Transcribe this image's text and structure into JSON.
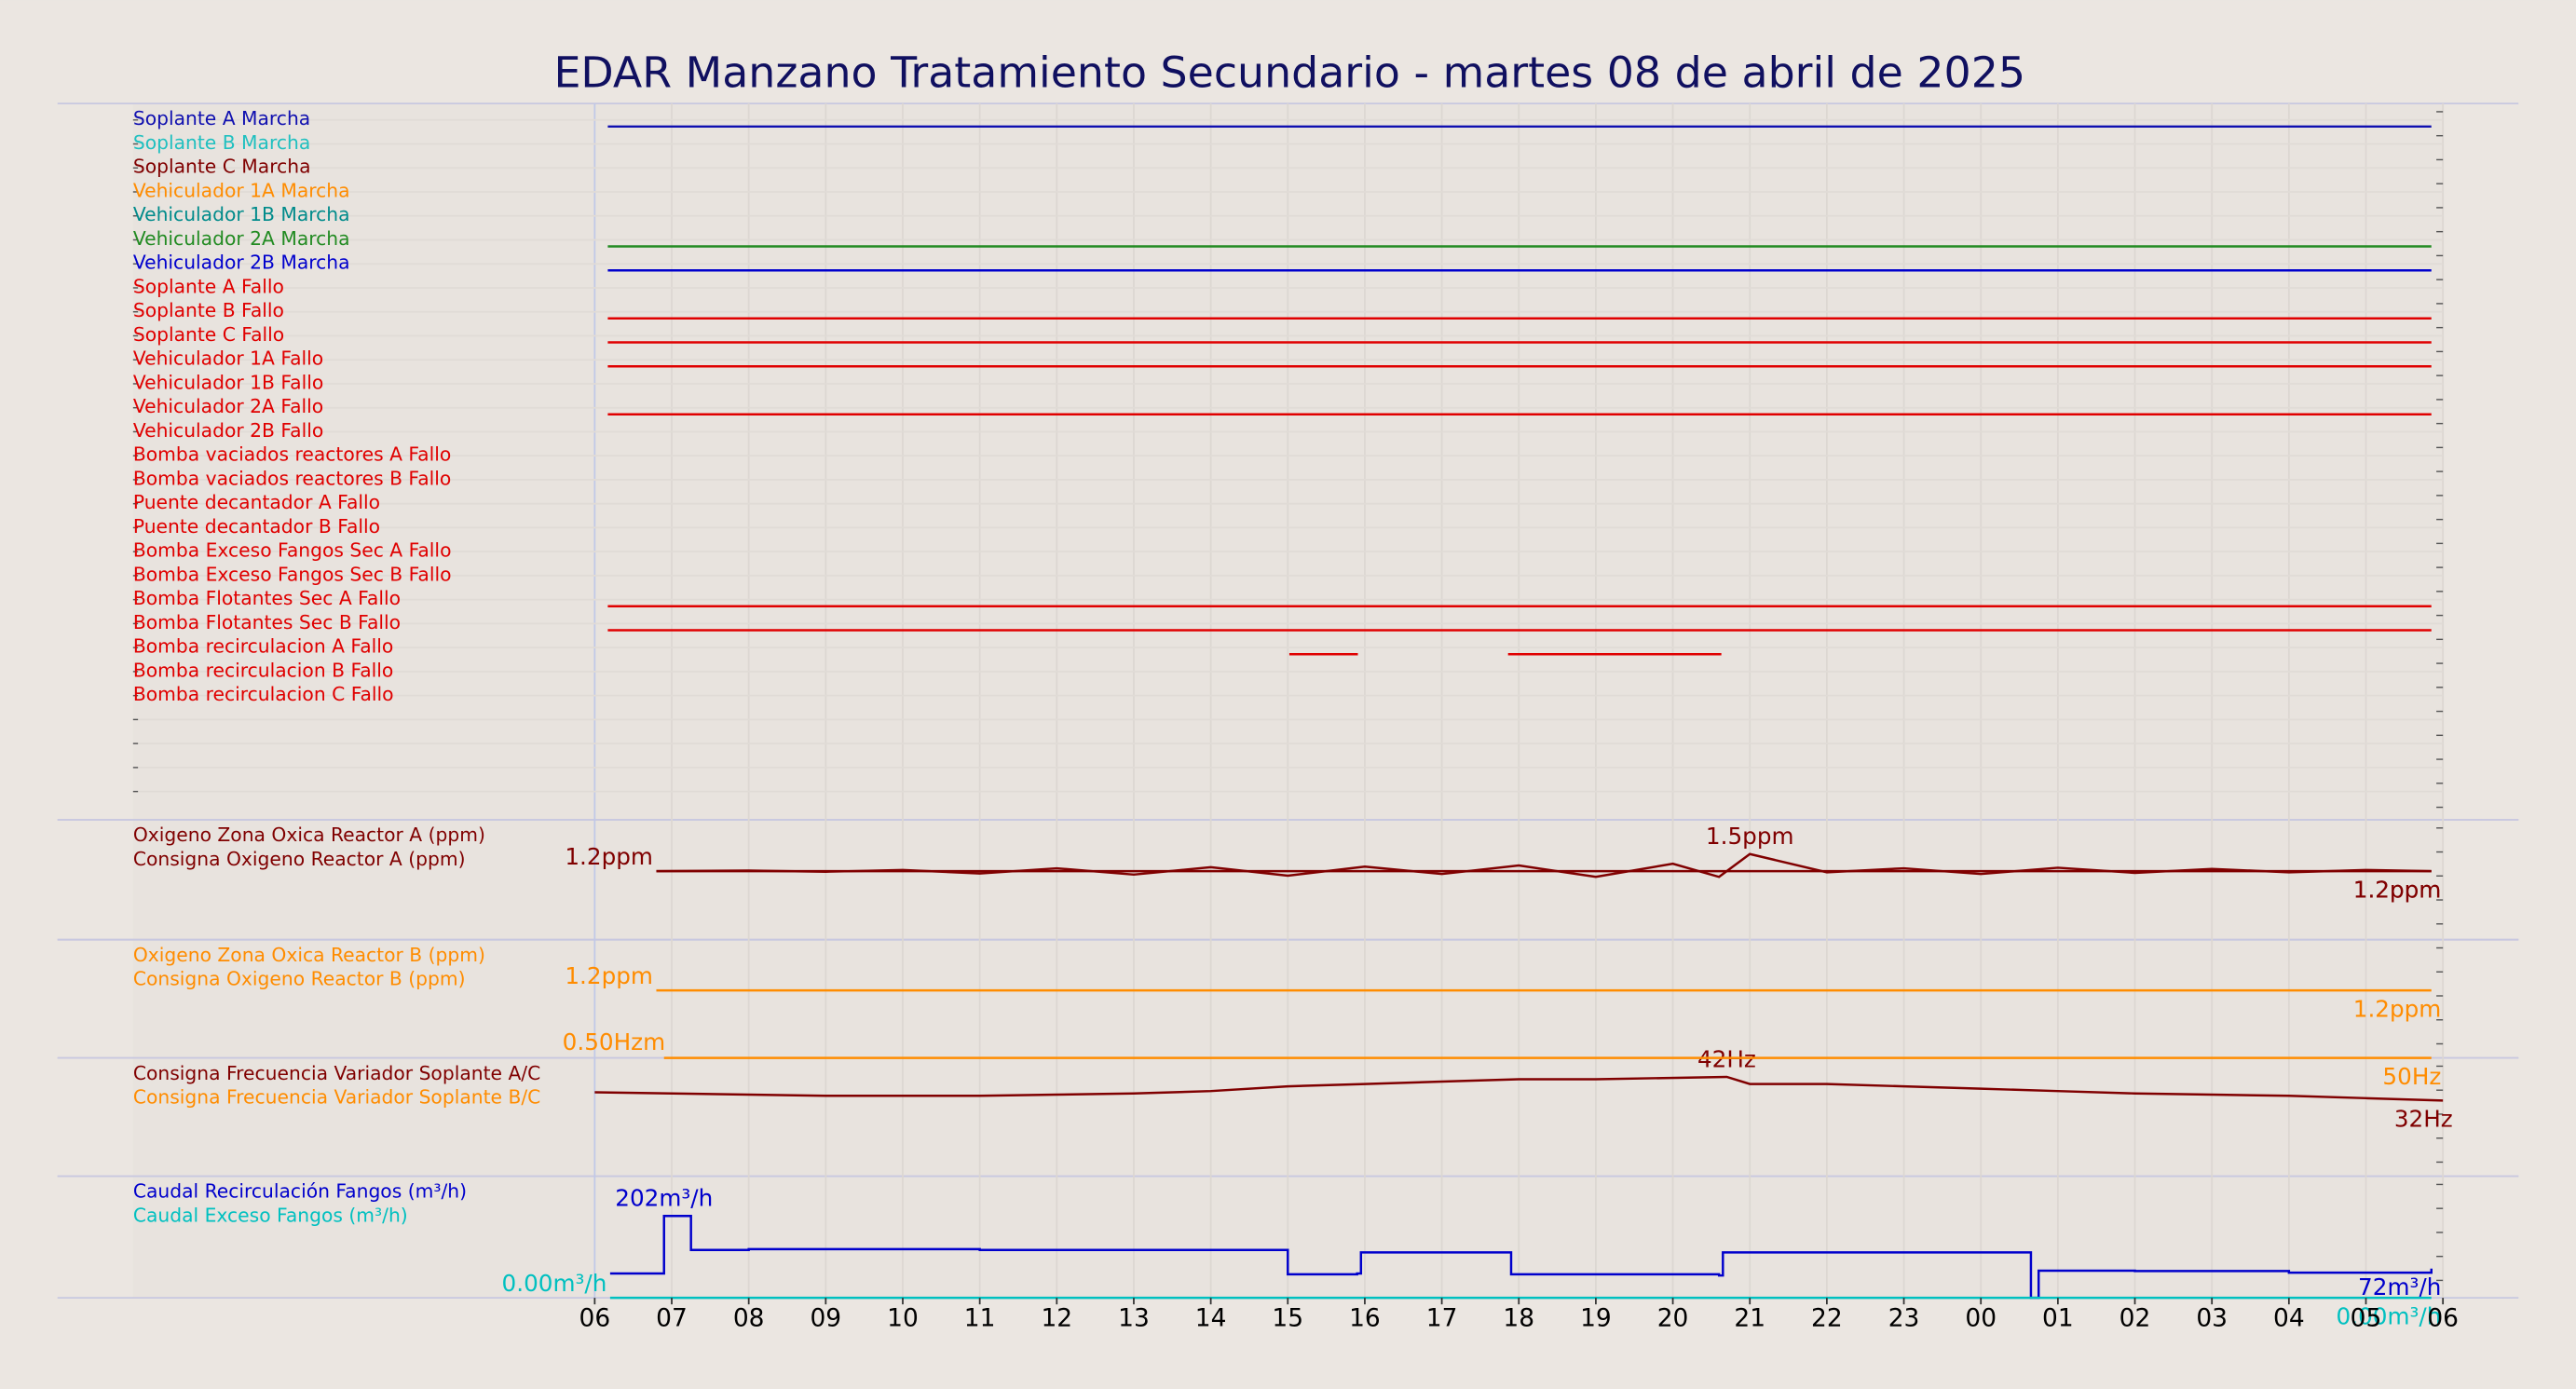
{
  "title": "EDAR Manzano Tratamiento Secundario   -   martes 08 de abril de 2025",
  "chart_data": [
    {
      "type": "timeline",
      "xlim": [
        0,
        24
      ],
      "series": [
        {
          "name": "Soplante A Marcha",
          "color": "#1010b0",
          "segments": [
            [
              0.17,
              23.85
            ]
          ]
        },
        {
          "name": "Soplante B Marcha",
          "color": "#20c0c0",
          "segments": []
        },
        {
          "name": "Soplante C Marcha",
          "color": "#800000",
          "segments": []
        },
        {
          "name": "Vehiculador 1A Marcha",
          "color": "#ff8c00",
          "segments": []
        },
        {
          "name": "Vehiculador 1B Marcha",
          "color": "#008b8b",
          "segments": []
        },
        {
          "name": "Vehiculador 2A Marcha",
          "color": "#228b22",
          "segments": [
            [
              0.17,
              23.85
            ]
          ]
        },
        {
          "name": "Vehiculador 2B Marcha",
          "color": "#0000cd",
          "segments": [
            [
              0.17,
              23.85
            ]
          ]
        },
        {
          "name": "Soplante A Fallo",
          "color": "#e00000",
          "segments": []
        },
        {
          "name": "Soplante B Fallo",
          "color": "#e00000",
          "segments": [
            [
              0.17,
              23.85
            ]
          ]
        },
        {
          "name": "Soplante C Fallo",
          "color": "#e00000",
          "segments": [
            [
              0.17,
              23.85
            ]
          ]
        },
        {
          "name": "Vehiculador 1A Fallo",
          "color": "#e00000",
          "segments": [
            [
              0.17,
              23.85
            ]
          ]
        },
        {
          "name": "Vehiculador 1B Fallo",
          "color": "#e00000",
          "segments": []
        },
        {
          "name": "Vehiculador 2A Fallo",
          "color": "#e00000",
          "segments": [
            [
              0.17,
              23.85
            ]
          ]
        },
        {
          "name": "Vehiculador 2B Fallo",
          "color": "#e00000",
          "segments": []
        },
        {
          "name": "Bomba vaciados reactores A Fallo",
          "color": "#e00000",
          "segments": []
        },
        {
          "name": "Bomba vaciados reactores B Fallo",
          "color": "#e00000",
          "segments": []
        },
        {
          "name": "Puente decantador A Fallo",
          "color": "#e00000",
          "segments": []
        },
        {
          "name": "Puente decantador B Fallo",
          "color": "#e00000",
          "segments": []
        },
        {
          "name": "Bomba Exceso Fangos Sec A Fallo",
          "color": "#e00000",
          "segments": []
        },
        {
          "name": "Bomba Exceso Fangos Sec B Fallo",
          "color": "#e00000",
          "segments": []
        },
        {
          "name": "Bomba Flotantes Sec A Fallo",
          "color": "#e00000",
          "segments": [
            [
              0.17,
              23.85
            ]
          ]
        },
        {
          "name": "Bomba Flotantes Sec B Fallo",
          "color": "#e00000",
          "segments": [
            [
              0.17,
              23.85
            ]
          ]
        },
        {
          "name": "Bomba recirculacion A Fallo",
          "color": "#e00000",
          "segments": [
            [
              9.02,
              9.91
            ],
            [
              11.86,
              14.63
            ]
          ]
        },
        {
          "name": "Bomba recirculacion B Fallo",
          "color": "#e00000",
          "segments": []
        },
        {
          "name": "Bomba recirculacion C Fallo",
          "color": "#e00000",
          "segments": []
        }
      ]
    },
    {
      "type": "line",
      "xlim": [
        0,
        24
      ],
      "ylim": [
        0,
        2.1
      ],
      "series": [
        {
          "name": "Oxigeno Zona Oxica Reactor A (ppm)",
          "color": "#800000",
          "x": [
            0.8,
            2,
            3,
            4,
            5,
            6,
            7,
            8,
            9,
            10,
            11,
            12,
            13,
            14,
            14.6,
            15,
            16,
            17,
            18,
            19,
            20,
            21,
            22,
            23,
            23.85
          ],
          "values": [
            1.2,
            1.21,
            1.19,
            1.22,
            1.16,
            1.25,
            1.14,
            1.27,
            1.12,
            1.28,
            1.15,
            1.3,
            1.1,
            1.33,
            1.1,
            1.5,
            1.18,
            1.25,
            1.15,
            1.26,
            1.17,
            1.24,
            1.18,
            1.22,
            1.2
          ],
          "value_labels": [
            null,
            null,
            null,
            null,
            null,
            null,
            null,
            null,
            null,
            null,
            null,
            null,
            null,
            null,
            null,
            "1.5ppm",
            null,
            null,
            null,
            null,
            null,
            null,
            null,
            null,
            "1.2ppm"
          ]
        },
        {
          "name": "Consigna Oxigeno Reactor A (ppm)",
          "color": "#800000",
          "x": [
            0.8,
            23.85
          ],
          "values": [
            1.2,
            1.2
          ],
          "value_labels": [
            "1.2ppm",
            "1.2ppm"
          ]
        }
      ]
    },
    {
      "type": "line",
      "xlim": [
        0,
        24
      ],
      "ylim": [
        0,
        2.1
      ],
      "series": [
        {
          "name": "Oxigeno Zona Oxica Reactor B (ppm)",
          "color": "#ff8c00",
          "x": [],
          "values": []
        },
        {
          "name": "Consigna Oxigeno Reactor B (ppm)",
          "color": "#ff8c00",
          "x": [
            0.8,
            23.85
          ],
          "values": [
            1.2,
            1.2
          ],
          "value_labels": [
            "1.2ppm",
            "1.2ppm"
          ]
        }
      ]
    },
    {
      "type": "line",
      "xlim": [
        0,
        24
      ],
      "ylim": [
        0,
        50
      ],
      "annotation": "0.50Hzm",
      "series": [
        {
          "name": "Consigna Frecuencia Variador Soplante A/C",
          "color": "#800000",
          "x": [
            0,
            1,
            2,
            3,
            4,
            5,
            6,
            7,
            8,
            9,
            10,
            11,
            12,
            13,
            14.7,
            15,
            16,
            17,
            18,
            19,
            20,
            21,
            22,
            23,
            24
          ],
          "values": [
            35.5,
            35,
            34.5,
            34,
            34,
            34,
            34.5,
            35,
            36,
            38,
            39,
            40,
            41,
            41,
            42,
            39,
            39,
            38,
            37,
            36,
            35,
            34.5,
            34,
            33,
            32
          ],
          "value_labels": [
            null,
            null,
            null,
            null,
            null,
            null,
            null,
            null,
            null,
            null,
            null,
            null,
            null,
            null,
            "42Hz",
            null,
            null,
            null,
            null,
            null,
            null,
            null,
            null,
            null,
            "32Hz"
          ]
        },
        {
          "name": "Consigna Frecuencia Variador Soplante B/C",
          "color": "#ff8c00",
          "x": [
            0.9,
            23.85
          ],
          "values": [
            50,
            50
          ],
          "value_labels": [
            null,
            "50Hz"
          ]
        }
      ]
    },
    {
      "type": "line",
      "step": true,
      "xlim": [
        0,
        24
      ],
      "ylim": [
        0,
        300
      ],
      "xticks": [
        {
          "value": 0,
          "label": "06"
        },
        {
          "value": 1,
          "label": "07"
        },
        {
          "value": 2,
          "label": "08"
        },
        {
          "value": 3,
          "label": "09"
        },
        {
          "value": 4,
          "label": "10"
        },
        {
          "value": 5,
          "label": "11"
        },
        {
          "value": 6,
          "label": "12"
        },
        {
          "value": 7,
          "label": "13"
        },
        {
          "value": 8,
          "label": "14"
        },
        {
          "value": 9,
          "label": "15"
        },
        {
          "value": 10,
          "label": "16"
        },
        {
          "value": 11,
          "label": "17"
        },
        {
          "value": 12,
          "label": "18"
        },
        {
          "value": 13,
          "label": "19"
        },
        {
          "value": 14,
          "label": "20"
        },
        {
          "value": 15,
          "label": "21"
        },
        {
          "value": 16,
          "label": "22"
        },
        {
          "value": 17,
          "label": "23"
        },
        {
          "value": 18,
          "label": "00"
        },
        {
          "value": 19,
          "label": "01"
        },
        {
          "value": 20,
          "label": "02"
        },
        {
          "value": 21,
          "label": "03"
        },
        {
          "value": 22,
          "label": "04"
        },
        {
          "value": 23,
          "label": "05"
        },
        {
          "value": 24,
          "label": "06"
        }
      ],
      "series": [
        {
          "name": "Caudal Recirculación Fangos (m³/h)",
          "color": "#0000cc",
          "x": [
            0.2,
            0.85,
            0.9,
            1.2,
            1.25,
            2,
            5,
            8.95,
            9.0,
            9.9,
            9.95,
            11.85,
            11.9,
            14.6,
            14.65,
            18.6,
            18.65,
            18.7,
            18.75,
            20,
            22,
            23.85
          ],
          "values": [
            60,
            60,
            202,
            202,
            118,
            120,
            118,
            118,
            58,
            60,
            112,
            112,
            58,
            55,
            112,
            112,
            0,
            0,
            67,
            66,
            62,
            72
          ],
          "value_labels": [
            null,
            null,
            "202m³/h",
            null,
            null,
            null,
            null,
            null,
            null,
            null,
            null,
            null,
            null,
            null,
            null,
            null,
            null,
            null,
            null,
            null,
            null,
            "72m³/h"
          ]
        },
        {
          "name": "Caudal Exceso Fangos (m³/h)",
          "color": "#00c0c0",
          "x": [
            0.2,
            23.85
          ],
          "values": [
            0,
            0
          ],
          "value_labels": [
            "0.00m³/h",
            "0.00m³/h"
          ]
        }
      ]
    }
  ]
}
